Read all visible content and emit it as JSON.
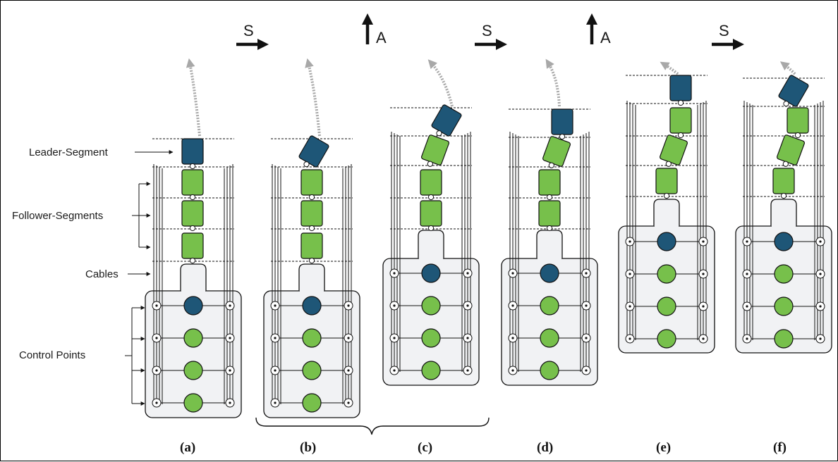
{
  "labels": {
    "leader": "Leader-Segment",
    "followers": "Follower-Segments",
    "cables": "Cables",
    "control": "Control Points"
  },
  "operations": [
    "S",
    "A",
    "S",
    "A",
    "S"
  ],
  "panels": [
    "(a)",
    "(b)",
    "(c)",
    "(d)",
    "(e)",
    "(f)"
  ],
  "colors": {
    "leader": "#1e5677",
    "follower": "#77c04b",
    "base": "#f1f2f4",
    "line": "#111111",
    "trajectory": "#a8a8a8"
  }
}
